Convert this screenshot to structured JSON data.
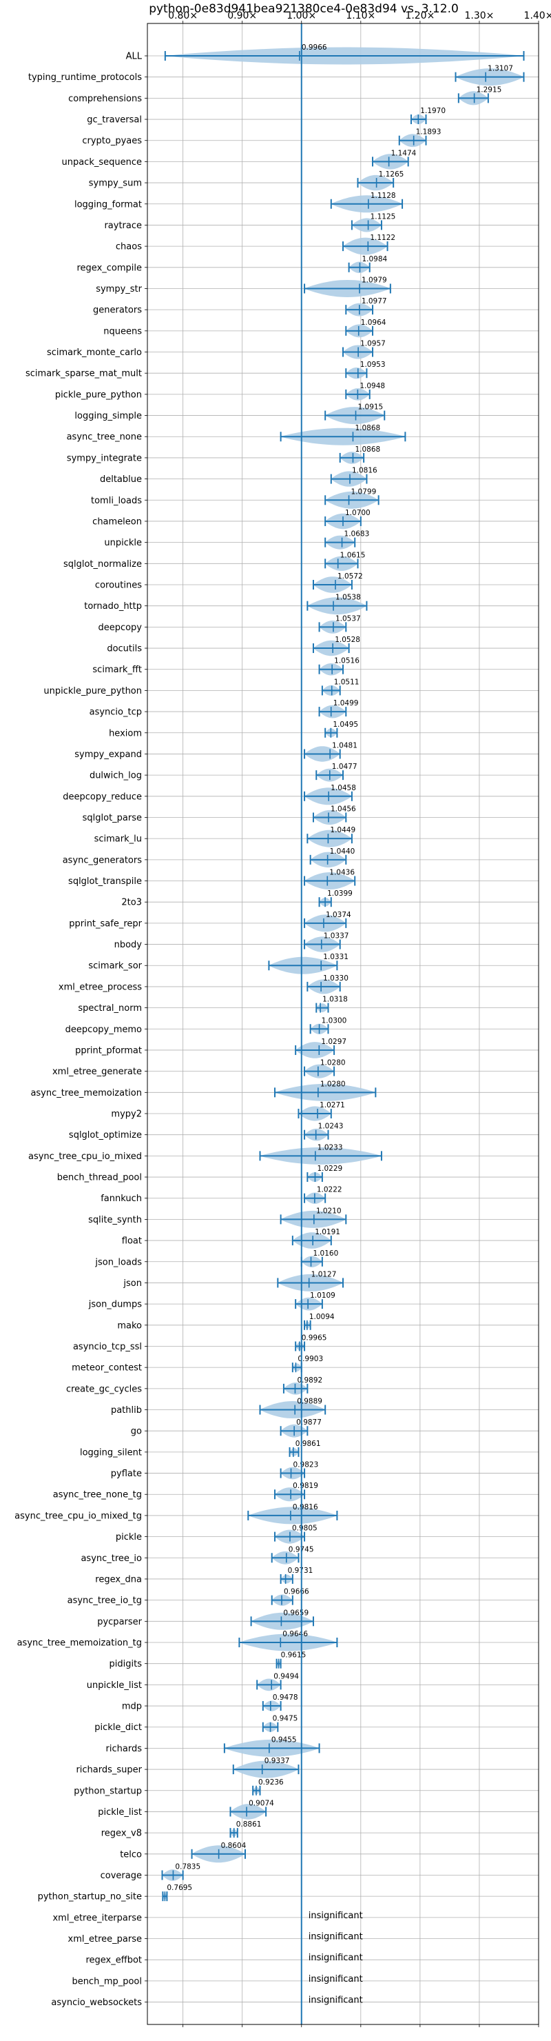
{
  "chart_data": {
    "type": "violin",
    "title": "python-0e83d941bea921380ce4-0e83d94 vs. 3.12.0",
    "xlabel": "",
    "ylabel": "",
    "xlim": [
      0.74,
      1.4
    ],
    "x_ticks": [
      0.8,
      0.9,
      1.0,
      1.1,
      1.2,
      1.3,
      1.4
    ],
    "x_tick_labels": [
      "0.80×",
      "0.90×",
      "1.00×",
      "1.10×",
      "1.20×",
      "1.30×",
      "1.40×"
    ],
    "reference_line": 1.0,
    "grid": true,
    "accent_color": "#1f77b4",
    "violin_color": "#aecde6",
    "insignificant_label": "insignificant",
    "benchmarks": [
      {
        "name": "ALL",
        "value": 0.9966,
        "label": "0.9966",
        "min": 0.77,
        "max": 1.375
      },
      {
        "name": "typing_runtime_protocols",
        "value": 1.3107,
        "label": "1.3107",
        "min": 1.26,
        "max": 1.375
      },
      {
        "name": "comprehensions",
        "value": 1.2915,
        "label": "1.2915",
        "min": 1.265,
        "max": 1.315
      },
      {
        "name": "gc_traversal",
        "value": 1.197,
        "label": "1.1970",
        "min": 1.185,
        "max": 1.21
      },
      {
        "name": "crypto_pyaes",
        "value": 1.1893,
        "label": "1.1893",
        "min": 1.165,
        "max": 1.21
      },
      {
        "name": "unpack_sequence",
        "value": 1.1474,
        "label": "1.1474",
        "min": 1.12,
        "max": 1.18
      },
      {
        "name": "sympy_sum",
        "value": 1.1265,
        "label": "1.1265",
        "min": 1.095,
        "max": 1.155
      },
      {
        "name": "logging_format",
        "value": 1.1128,
        "label": "1.1128",
        "min": 1.05,
        "max": 1.17
      },
      {
        "name": "raytrace",
        "value": 1.1125,
        "label": "1.1125",
        "min": 1.085,
        "max": 1.135
      },
      {
        "name": "chaos",
        "value": 1.1122,
        "label": "1.1122",
        "min": 1.07,
        "max": 1.145
      },
      {
        "name": "regex_compile",
        "value": 1.0984,
        "label": "1.0984",
        "min": 1.08,
        "max": 1.115
      },
      {
        "name": "sympy_str",
        "value": 1.0979,
        "label": "1.0979",
        "min": 1.005,
        "max": 1.15
      },
      {
        "name": "generators",
        "value": 1.0977,
        "label": "1.0977",
        "min": 1.075,
        "max": 1.12
      },
      {
        "name": "nqueens",
        "value": 1.0964,
        "label": "1.0964",
        "min": 1.075,
        "max": 1.12
      },
      {
        "name": "scimark_monte_carlo",
        "value": 1.0957,
        "label": "1.0957",
        "min": 1.07,
        "max": 1.12
      },
      {
        "name": "scimark_sparse_mat_mult",
        "value": 1.0953,
        "label": "1.0953",
        "min": 1.075,
        "max": 1.11
      },
      {
        "name": "pickle_pure_python",
        "value": 1.0948,
        "label": "1.0948",
        "min": 1.075,
        "max": 1.115
      },
      {
        "name": "logging_simple",
        "value": 1.0915,
        "label": "1.0915",
        "min": 1.04,
        "max": 1.14
      },
      {
        "name": "async_tree_none",
        "value": 1.0868,
        "label": "1.0868",
        "min": 0.965,
        "max": 1.175
      },
      {
        "name": "sympy_integrate",
        "value": 1.0868,
        "label": "1.0868",
        "min": 1.065,
        "max": 1.105
      },
      {
        "name": "deltablue",
        "value": 1.0816,
        "label": "1.0816",
        "min": 1.05,
        "max": 1.11
      },
      {
        "name": "tomli_loads",
        "value": 1.0799,
        "label": "1.0799",
        "min": 1.04,
        "max": 1.13
      },
      {
        "name": "chameleon",
        "value": 1.07,
        "label": "1.0700",
        "min": 1.04,
        "max": 1.1
      },
      {
        "name": "unpickle",
        "value": 1.0683,
        "label": "1.0683",
        "min": 1.04,
        "max": 1.09
      },
      {
        "name": "sqlglot_normalize",
        "value": 1.0615,
        "label": "1.0615",
        "min": 1.04,
        "max": 1.095
      },
      {
        "name": "coroutines",
        "value": 1.0572,
        "label": "1.0572",
        "min": 1.02,
        "max": 1.085
      },
      {
        "name": "tornado_http",
        "value": 1.0538,
        "label": "1.0538",
        "min": 1.01,
        "max": 1.11
      },
      {
        "name": "deepcopy",
        "value": 1.0537,
        "label": "1.0537",
        "min": 1.03,
        "max": 1.075
      },
      {
        "name": "docutils",
        "value": 1.0528,
        "label": "1.0528",
        "min": 1.02,
        "max": 1.08
      },
      {
        "name": "scimark_fft",
        "value": 1.0516,
        "label": "1.0516",
        "min": 1.03,
        "max": 1.07
      },
      {
        "name": "unpickle_pure_python",
        "value": 1.0511,
        "label": "1.0511",
        "min": 1.035,
        "max": 1.065
      },
      {
        "name": "asyncio_tcp",
        "value": 1.0499,
        "label": "1.0499",
        "min": 1.03,
        "max": 1.075
      },
      {
        "name": "hexiom",
        "value": 1.0495,
        "label": "1.0495",
        "min": 1.04,
        "max": 1.06
      },
      {
        "name": "sympy_expand",
        "value": 1.0481,
        "label": "1.0481",
        "min": 1.005,
        "max": 1.065
      },
      {
        "name": "dulwich_log",
        "value": 1.0477,
        "label": "1.0477",
        "min": 1.025,
        "max": 1.07
      },
      {
        "name": "deepcopy_reduce",
        "value": 1.0458,
        "label": "1.0458",
        "min": 1.005,
        "max": 1.085
      },
      {
        "name": "sqlglot_parse",
        "value": 1.0456,
        "label": "1.0456",
        "min": 1.02,
        "max": 1.075
      },
      {
        "name": "scimark_lu",
        "value": 1.0449,
        "label": "1.0449",
        "min": 1.01,
        "max": 1.085
      },
      {
        "name": "async_generators",
        "value": 1.044,
        "label": "1.0440",
        "min": 1.015,
        "max": 1.075
      },
      {
        "name": "sqlglot_transpile",
        "value": 1.0436,
        "label": "1.0436",
        "min": 1.005,
        "max": 1.09
      },
      {
        "name": "2to3",
        "value": 1.0399,
        "label": "1.0399",
        "min": 1.03,
        "max": 1.05
      },
      {
        "name": "pprint_safe_repr",
        "value": 1.0374,
        "label": "1.0374",
        "min": 1.005,
        "max": 1.075
      },
      {
        "name": "nbody",
        "value": 1.0337,
        "label": "1.0337",
        "min": 1.005,
        "max": 1.065
      },
      {
        "name": "scimark_sor",
        "value": 1.0331,
        "label": "1.0331",
        "min": 0.945,
        "max": 1.06
      },
      {
        "name": "xml_etree_process",
        "value": 1.033,
        "label": "1.0330",
        "min": 1.01,
        "max": 1.065
      },
      {
        "name": "spectral_norm",
        "value": 1.0318,
        "label": "1.0318",
        "min": 1.025,
        "max": 1.045
      },
      {
        "name": "deepcopy_memo",
        "value": 1.03,
        "label": "1.0300",
        "min": 1.015,
        "max": 1.045
      },
      {
        "name": "pprint_pformat",
        "value": 1.0297,
        "label": "1.0297",
        "min": 0.99,
        "max": 1.055
      },
      {
        "name": "xml_etree_generate",
        "value": 1.028,
        "label": "1.0280",
        "min": 1.005,
        "max": 1.055
      },
      {
        "name": "async_tree_memoization",
        "value": 1.028,
        "label": "1.0280",
        "min": 0.955,
        "max": 1.125
      },
      {
        "name": "mypy2",
        "value": 1.0271,
        "label": "1.0271",
        "min": 0.995,
        "max": 1.05
      },
      {
        "name": "sqlglot_optimize",
        "value": 1.0243,
        "label": "1.0243",
        "min": 1.005,
        "max": 1.045
      },
      {
        "name": "async_tree_cpu_io_mixed",
        "value": 1.0233,
        "label": "1.0233",
        "min": 0.93,
        "max": 1.135
      },
      {
        "name": "bench_thread_pool",
        "value": 1.0229,
        "label": "1.0229",
        "min": 1.01,
        "max": 1.035
      },
      {
        "name": "fannkuch",
        "value": 1.0222,
        "label": "1.0222",
        "min": 1.005,
        "max": 1.04
      },
      {
        "name": "sqlite_synth",
        "value": 1.021,
        "label": "1.0210",
        "min": 0.965,
        "max": 1.075
      },
      {
        "name": "float",
        "value": 1.0191,
        "label": "1.0191",
        "min": 0.985,
        "max": 1.05
      },
      {
        "name": "json_loads",
        "value": 1.016,
        "label": "1.0160",
        "min": 1.0,
        "max": 1.035
      },
      {
        "name": "json",
        "value": 1.0127,
        "label": "1.0127",
        "min": 0.96,
        "max": 1.07
      },
      {
        "name": "json_dumps",
        "value": 1.0109,
        "label": "1.0109",
        "min": 0.99,
        "max": 1.035
      },
      {
        "name": "mako",
        "value": 1.0094,
        "label": "1.0094",
        "min": 1.005,
        "max": 1.015
      },
      {
        "name": "asyncio_tcp_ssl",
        "value": 0.9965,
        "label": "0.9965",
        "min": 0.99,
        "max": 1.005
      },
      {
        "name": "meteor_contest",
        "value": 0.9903,
        "label": "0.9903",
        "min": 0.985,
        "max": 1.0
      },
      {
        "name": "create_gc_cycles",
        "value": 0.9892,
        "label": "0.9892",
        "min": 0.97,
        "max": 1.01
      },
      {
        "name": "pathlib",
        "value": 0.9889,
        "label": "0.9889",
        "min": 0.93,
        "max": 1.04
      },
      {
        "name": "go",
        "value": 0.9877,
        "label": "0.9877",
        "min": 0.965,
        "max": 1.01
      },
      {
        "name": "logging_silent",
        "value": 0.9861,
        "label": "0.9861",
        "min": 0.98,
        "max": 0.995
      },
      {
        "name": "pyflate",
        "value": 0.9823,
        "label": "0.9823",
        "min": 0.965,
        "max": 1.005
      },
      {
        "name": "async_tree_none_tg",
        "value": 0.9819,
        "label": "0.9819",
        "min": 0.955,
        "max": 1.005
      },
      {
        "name": "async_tree_cpu_io_mixed_tg",
        "value": 0.9816,
        "label": "0.9816",
        "min": 0.91,
        "max": 1.06
      },
      {
        "name": "pickle",
        "value": 0.9805,
        "label": "0.9805",
        "min": 0.955,
        "max": 1.005
      },
      {
        "name": "async_tree_io",
        "value": 0.9745,
        "label": "0.9745",
        "min": 0.95,
        "max": 0.995
      },
      {
        "name": "regex_dna",
        "value": 0.9731,
        "label": "0.9731",
        "min": 0.965,
        "max": 0.985
      },
      {
        "name": "async_tree_io_tg",
        "value": 0.9666,
        "label": "0.9666",
        "min": 0.95,
        "max": 0.985
      },
      {
        "name": "pycparser",
        "value": 0.9659,
        "label": "0.9659",
        "min": 0.915,
        "max": 1.02
      },
      {
        "name": "async_tree_memoization_tg",
        "value": 0.9646,
        "label": "0.9646",
        "min": 0.895,
        "max": 1.06
      },
      {
        "name": "pidigits",
        "value": 0.9615,
        "label": "0.9615",
        "min": 0.958,
        "max": 0.965
      },
      {
        "name": "unpickle_list",
        "value": 0.9494,
        "label": "0.9494",
        "min": 0.925,
        "max": 0.965
      },
      {
        "name": "mdp",
        "value": 0.9478,
        "label": "0.9478",
        "min": 0.935,
        "max": 0.965
      },
      {
        "name": "pickle_dict",
        "value": 0.9475,
        "label": "0.9475",
        "min": 0.935,
        "max": 0.96
      },
      {
        "name": "richards",
        "value": 0.9455,
        "label": "0.9455",
        "min": 0.87,
        "max": 1.03
      },
      {
        "name": "richards_super",
        "value": 0.9337,
        "label": "0.9337",
        "min": 0.885,
        "max": 0.995
      },
      {
        "name": "python_startup",
        "value": 0.9236,
        "label": "0.9236",
        "min": 0.918,
        "max": 0.93
      },
      {
        "name": "pickle_list",
        "value": 0.9074,
        "label": "0.9074",
        "min": 0.88,
        "max": 0.94
      },
      {
        "name": "regex_v8",
        "value": 0.8861,
        "label": "0.8861",
        "min": 0.88,
        "max": 0.892
      },
      {
        "name": "telco",
        "value": 0.8604,
        "label": "0.8604",
        "min": 0.815,
        "max": 0.905
      },
      {
        "name": "coverage",
        "value": 0.7835,
        "label": "0.7835",
        "min": 0.765,
        "max": 0.8
      },
      {
        "name": "python_startup_no_site",
        "value": 0.7695,
        "label": "0.7695",
        "min": 0.766,
        "max": 0.773
      },
      {
        "name": "xml_etree_iterparse",
        "value": null,
        "label": "insignificant"
      },
      {
        "name": "xml_etree_parse",
        "value": null,
        "label": "insignificant"
      },
      {
        "name": "regex_effbot",
        "value": null,
        "label": "insignificant"
      },
      {
        "name": "bench_mp_pool",
        "value": null,
        "label": "insignificant"
      },
      {
        "name": "asyncio_websockets",
        "value": null,
        "label": "insignificant"
      }
    ]
  }
}
